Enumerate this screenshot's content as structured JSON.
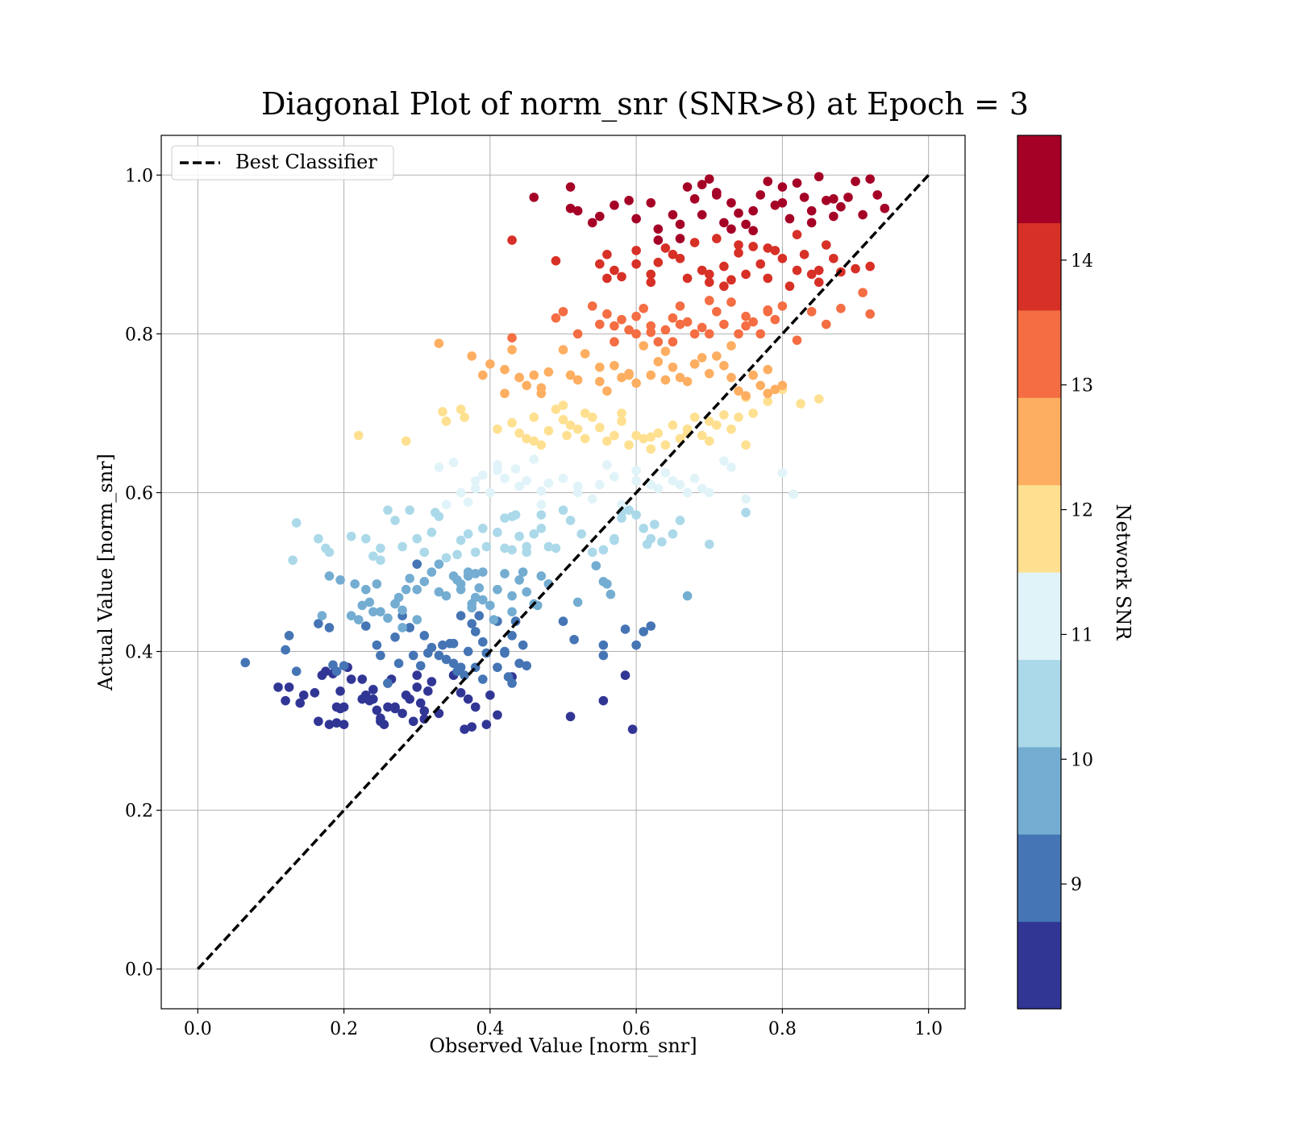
{
  "chart_data": {
    "type": "scatter",
    "title": "Diagonal Plot of norm_snr (SNR>8) at Epoch = 3",
    "xlabel": "Observed Value [norm_snr]",
    "ylabel": "Actual Value [norm_snr]",
    "xlim": [
      -0.05,
      1.05
    ],
    "ylim": [
      -0.05,
      1.05
    ],
    "xticks": [
      "0.0",
      "0.2",
      "0.4",
      "0.6",
      "0.8",
      "1.0"
    ],
    "yticks": [
      "0.0",
      "0.2",
      "0.4",
      "0.6",
      "0.8",
      "1.0"
    ],
    "grid": true,
    "legend": {
      "position": "top-left",
      "entries": [
        "Best Classifier"
      ]
    },
    "reference_line": {
      "name": "Best Classifier",
      "x": [
        0,
        1
      ],
      "y": [
        0,
        1
      ],
      "style": "dashed",
      "color": "#000000"
    },
    "colorbar": {
      "label": "Network SNR",
      "range": [
        8,
        15
      ],
      "ticks": [
        "9",
        "10",
        "11",
        "12",
        "13",
        "14"
      ],
      "tick_values": [
        9,
        10,
        11,
        12,
        13,
        14
      ],
      "colors": [
        "#313695",
        "#4575b4",
        "#74add1",
        "#abd9e9",
        "#e0f3f8",
        "#fee090",
        "#fdae61",
        "#f46d43",
        "#d73027",
        "#a50026"
      ]
    },
    "points_by_band": [
      {
        "color": "#313695",
        "x": [
          0.11,
          0.12,
          0.125,
          0.145,
          0.165,
          0.17,
          0.18,
          0.19,
          0.19,
          0.195,
          0.2,
          0.2,
          0.205,
          0.175,
          0.185,
          0.195,
          0.225,
          0.23,
          0.235,
          0.24,
          0.245,
          0.25,
          0.255,
          0.26,
          0.265,
          0.27,
          0.28,
          0.285,
          0.29,
          0.295,
          0.3,
          0.305,
          0.31,
          0.315,
          0.32,
          0.33,
          0.36,
          0.365,
          0.37,
          0.375,
          0.38,
          0.395,
          0.4,
          0.41,
          0.43,
          0.51,
          0.555,
          0.585,
          0.595,
          0.16,
          0.14,
          0.21,
          0.25,
          0.26,
          0.3,
          0.31,
          0.35,
          0.27,
          0.24,
          0.225
        ],
        "y": [
          0.355,
          0.338,
          0.355,
          0.345,
          0.312,
          0.37,
          0.308,
          0.31,
          0.33,
          0.35,
          0.308,
          0.33,
          0.38,
          0.375,
          0.372,
          0.328,
          0.365,
          0.345,
          0.338,
          0.352,
          0.326,
          0.316,
          0.308,
          0.33,
          0.365,
          0.33,
          0.322,
          0.345,
          0.34,
          0.312,
          0.37,
          0.335,
          0.325,
          0.35,
          0.362,
          0.322,
          0.348,
          0.302,
          0.34,
          0.305,
          0.33,
          0.308,
          0.345,
          0.32,
          0.368,
          0.318,
          0.338,
          0.37,
          0.302,
          0.348,
          0.335,
          0.365,
          0.312,
          0.36,
          0.355,
          0.315,
          0.37,
          0.328,
          0.34,
          0.34
        ]
      },
      {
        "color": "#4575b4",
        "x": [
          0.065,
          0.12,
          0.125,
          0.135,
          0.165,
          0.18,
          0.185,
          0.19,
          0.2,
          0.23,
          0.245,
          0.25,
          0.26,
          0.27,
          0.275,
          0.28,
          0.29,
          0.295,
          0.3,
          0.305,
          0.31,
          0.315,
          0.32,
          0.33,
          0.335,
          0.34,
          0.345,
          0.35,
          0.355,
          0.36,
          0.365,
          0.37,
          0.375,
          0.38,
          0.385,
          0.39,
          0.395,
          0.41,
          0.42,
          0.425,
          0.43,
          0.435,
          0.44,
          0.445,
          0.45,
          0.5,
          0.515,
          0.555,
          0.585,
          0.6,
          0.61,
          0.62,
          0.555,
          0.41,
          0.43,
          0.39,
          0.36,
          0.35,
          0.38,
          0.42
        ],
        "y": [
          0.386,
          0.402,
          0.42,
          0.375,
          0.435,
          0.43,
          0.383,
          0.375,
          0.382,
          0.432,
          0.408,
          0.395,
          0.36,
          0.418,
          0.385,
          0.445,
          0.43,
          0.395,
          0.51,
          0.382,
          0.42,
          0.398,
          0.405,
          0.395,
          0.408,
          0.39,
          0.41,
          0.385,
          0.375,
          0.38,
          0.37,
          0.4,
          0.435,
          0.38,
          0.445,
          0.412,
          0.398,
          0.438,
          0.4,
          0.368,
          0.42,
          0.438,
          0.385,
          0.408,
          0.382,
          0.438,
          0.415,
          0.408,
          0.428,
          0.408,
          0.425,
          0.432,
          0.395,
          0.38,
          0.36,
          0.365,
          0.445,
          0.41,
          0.425,
          0.398
        ]
      },
      {
        "color": "#74add1",
        "x": [
          0.17,
          0.18,
          0.195,
          0.21,
          0.215,
          0.22,
          0.225,
          0.23,
          0.235,
          0.24,
          0.245,
          0.25,
          0.26,
          0.27,
          0.275,
          0.28,
          0.285,
          0.29,
          0.3,
          0.31,
          0.32,
          0.33,
          0.34,
          0.35,
          0.355,
          0.36,
          0.37,
          0.375,
          0.38,
          0.385,
          0.39,
          0.4,
          0.405,
          0.41,
          0.42,
          0.43,
          0.44,
          0.445,
          0.45,
          0.46,
          0.465,
          0.47,
          0.48,
          0.52,
          0.545,
          0.555,
          0.56,
          0.565,
          0.67,
          0.375,
          0.38,
          0.37,
          0.36,
          0.39,
          0.43,
          0.3,
          0.33,
          0.28,
          0.27
        ],
        "y": [
          0.445,
          0.495,
          0.49,
          0.445,
          0.485,
          0.44,
          0.458,
          0.478,
          0.462,
          0.45,
          0.485,
          0.45,
          0.442,
          0.46,
          0.468,
          0.452,
          0.478,
          0.492,
          0.478,
          0.488,
          0.5,
          0.475,
          0.47,
          0.495,
          0.49,
          0.485,
          0.5,
          0.46,
          0.498,
          0.48,
          0.5,
          0.458,
          0.44,
          0.478,
          0.498,
          0.45,
          0.49,
          0.5,
          0.475,
          0.46,
          0.458,
          0.495,
          0.485,
          0.462,
          0.508,
          0.488,
          0.485,
          0.472,
          0.47,
          0.455,
          0.468,
          0.495,
          0.478,
          0.465,
          0.47,
          0.44,
          0.51,
          0.43,
          0.46
        ]
      },
      {
        "color": "#abd9e9",
        "x": [
          0.135,
          0.165,
          0.175,
          0.21,
          0.23,
          0.24,
          0.25,
          0.26,
          0.27,
          0.28,
          0.29,
          0.3,
          0.31,
          0.32,
          0.33,
          0.34,
          0.355,
          0.37,
          0.38,
          0.39,
          0.395,
          0.41,
          0.42,
          0.43,
          0.435,
          0.44,
          0.45,
          0.46,
          0.47,
          0.48,
          0.49,
          0.5,
          0.51,
          0.525,
          0.54,
          0.555,
          0.57,
          0.58,
          0.59,
          0.6,
          0.61,
          0.62,
          0.625,
          0.635,
          0.65,
          0.66,
          0.7,
          0.75,
          0.36,
          0.42,
          0.45,
          0.325,
          0.25,
          0.18,
          0.13,
          0.43,
          0.47,
          0.57,
          0.58,
          0.615
        ],
        "y": [
          0.562,
          0.542,
          0.53,
          0.545,
          0.542,
          0.52,
          0.53,
          0.578,
          0.565,
          0.532,
          0.578,
          0.542,
          0.525,
          0.55,
          0.57,
          0.518,
          0.522,
          0.548,
          0.525,
          0.555,
          0.532,
          0.55,
          0.568,
          0.528,
          0.572,
          0.545,
          0.532,
          0.548,
          0.572,
          0.532,
          0.53,
          0.578,
          0.565,
          0.548,
          0.525,
          0.528,
          0.542,
          0.568,
          0.578,
          0.572,
          0.555,
          0.542,
          0.56,
          0.538,
          0.548,
          0.565,
          0.535,
          0.575,
          0.54,
          0.53,
          0.525,
          0.575,
          0.515,
          0.525,
          0.515,
          0.57,
          0.555,
          0.54,
          0.575,
          0.535
        ]
      },
      {
        "color": "#e0f3f8",
        "x": [
          0.33,
          0.34,
          0.35,
          0.36,
          0.37,
          0.38,
          0.39,
          0.4,
          0.41,
          0.42,
          0.435,
          0.45,
          0.46,
          0.47,
          0.48,
          0.5,
          0.52,
          0.54,
          0.56,
          0.58,
          0.6,
          0.62,
          0.64,
          0.66,
          0.68,
          0.7,
          0.72,
          0.75,
          0.8,
          0.815,
          0.38,
          0.41,
          0.44,
          0.47,
          0.57,
          0.6,
          0.63,
          0.69,
          0.73,
          0.52,
          0.55,
          0.65,
          0.67
        ],
        "y": [
          0.632,
          0.585,
          0.638,
          0.6,
          0.588,
          0.605,
          0.622,
          0.6,
          0.635,
          0.618,
          0.63,
          0.615,
          0.642,
          0.585,
          0.612,
          0.618,
          0.6,
          0.592,
          0.635,
          0.585,
          0.628,
          0.61,
          0.625,
          0.61,
          0.618,
          0.6,
          0.64,
          0.592,
          0.625,
          0.598,
          0.615,
          0.628,
          0.608,
          0.602,
          0.62,
          0.615,
          0.605,
          0.605,
          0.632,
          0.608,
          0.61,
          0.615,
          0.6
        ]
      },
      {
        "color": "#fee090",
        "x": [
          0.22,
          0.285,
          0.335,
          0.34,
          0.36,
          0.365,
          0.41,
          0.43,
          0.44,
          0.45,
          0.46,
          0.47,
          0.48,
          0.49,
          0.5,
          0.505,
          0.51,
          0.52,
          0.53,
          0.54,
          0.55,
          0.56,
          0.57,
          0.58,
          0.59,
          0.6,
          0.61,
          0.62,
          0.63,
          0.64,
          0.65,
          0.66,
          0.67,
          0.68,
          0.69,
          0.7,
          0.71,
          0.72,
          0.73,
          0.74,
          0.75,
          0.76,
          0.78,
          0.8,
          0.825,
          0.85,
          0.46,
          0.5,
          0.53,
          0.58,
          0.62,
          0.67,
          0.7,
          0.75
        ],
        "y": [
          0.672,
          0.665,
          0.702,
          0.69,
          0.705,
          0.695,
          0.68,
          0.688,
          0.675,
          0.668,
          0.695,
          0.66,
          0.678,
          0.705,
          0.692,
          0.672,
          0.685,
          0.68,
          0.668,
          0.695,
          0.682,
          0.665,
          0.672,
          0.7,
          0.66,
          0.672,
          0.668,
          0.655,
          0.675,
          0.66,
          0.685,
          0.668,
          0.675,
          0.695,
          0.672,
          0.665,
          0.685,
          0.698,
          0.68,
          0.695,
          0.72,
          0.7,
          0.715,
          0.73,
          0.712,
          0.718,
          0.665,
          0.71,
          0.7,
          0.69,
          0.67,
          0.68,
          0.69,
          0.66
        ]
      },
      {
        "color": "#fdae61",
        "x": [
          0.33,
          0.375,
          0.39,
          0.4,
          0.42,
          0.43,
          0.44,
          0.45,
          0.46,
          0.47,
          0.48,
          0.5,
          0.52,
          0.53,
          0.55,
          0.56,
          0.57,
          0.58,
          0.59,
          0.6,
          0.61,
          0.62,
          0.63,
          0.64,
          0.65,
          0.66,
          0.67,
          0.68,
          0.69,
          0.7,
          0.71,
          0.72,
          0.73,
          0.74,
          0.75,
          0.76,
          0.77,
          0.78,
          0.79,
          0.8,
          0.42,
          0.44,
          0.47,
          0.51,
          0.55,
          0.59,
          0.64,
          0.68,
          0.73,
          0.78
        ],
        "y": [
          0.788,
          0.772,
          0.748,
          0.762,
          0.755,
          0.78,
          0.745,
          0.735,
          0.748,
          0.725,
          0.752,
          0.78,
          0.742,
          0.775,
          0.74,
          0.728,
          0.76,
          0.745,
          0.748,
          0.738,
          0.785,
          0.748,
          0.765,
          0.742,
          0.758,
          0.745,
          0.74,
          0.762,
          0.77,
          0.75,
          0.772,
          0.76,
          0.785,
          0.728,
          0.722,
          0.748,
          0.735,
          0.725,
          0.73,
          0.735,
          0.725,
          0.745,
          0.732,
          0.748,
          0.758,
          0.75,
          0.778,
          0.762,
          0.745,
          0.755
        ]
      },
      {
        "color": "#f46d43",
        "x": [
          0.43,
          0.49,
          0.5,
          0.52,
          0.54,
          0.55,
          0.56,
          0.57,
          0.58,
          0.59,
          0.6,
          0.61,
          0.62,
          0.63,
          0.64,
          0.65,
          0.66,
          0.67,
          0.68,
          0.69,
          0.7,
          0.71,
          0.72,
          0.73,
          0.74,
          0.75,
          0.76,
          0.77,
          0.78,
          0.79,
          0.8,
          0.82,
          0.84,
          0.86,
          0.88,
          0.91,
          0.92,
          0.57,
          0.6,
          0.65,
          0.7,
          0.75,
          0.78,
          0.62,
          0.66
        ],
        "y": [
          0.795,
          0.82,
          0.828,
          0.8,
          0.835,
          0.812,
          0.825,
          0.79,
          0.818,
          0.805,
          0.8,
          0.832,
          0.81,
          0.79,
          0.805,
          0.82,
          0.835,
          0.815,
          0.8,
          0.808,
          0.8,
          0.828,
          0.812,
          0.84,
          0.8,
          0.822,
          0.815,
          0.8,
          0.828,
          0.818,
          0.835,
          0.792,
          0.828,
          0.812,
          0.832,
          0.852,
          0.825,
          0.81,
          0.822,
          0.79,
          0.842,
          0.81,
          0.83,
          0.802,
          0.812
        ]
      },
      {
        "color": "#d73027",
        "x": [
          0.43,
          0.49,
          0.55,
          0.56,
          0.57,
          0.58,
          0.6,
          0.62,
          0.63,
          0.64,
          0.66,
          0.67,
          0.68,
          0.69,
          0.7,
          0.71,
          0.72,
          0.73,
          0.74,
          0.75,
          0.76,
          0.77,
          0.78,
          0.79,
          0.8,
          0.81,
          0.82,
          0.83,
          0.84,
          0.85,
          0.86,
          0.87,
          0.88,
          0.9,
          0.92,
          0.56,
          0.6,
          0.65,
          0.7,
          0.74,
          0.78,
          0.82,
          0.85,
          0.72,
          0.62
        ],
        "y": [
          0.918,
          0.892,
          0.888,
          0.9,
          0.88,
          0.872,
          0.905,
          0.875,
          0.89,
          0.908,
          0.895,
          0.87,
          0.915,
          0.88,
          0.865,
          0.92,
          0.885,
          0.868,
          0.902,
          0.875,
          0.91,
          0.888,
          0.87,
          0.905,
          0.895,
          0.86,
          0.88,
          0.9,
          0.875,
          0.865,
          0.912,
          0.895,
          0.878,
          0.882,
          0.885,
          0.87,
          0.888,
          0.9,
          0.875,
          0.912,
          0.908,
          0.925,
          0.88,
          0.86,
          0.865
        ]
      },
      {
        "color": "#a50026",
        "x": [
          0.46,
          0.51,
          0.52,
          0.51,
          0.54,
          0.55,
          0.57,
          0.59,
          0.6,
          0.62,
          0.63,
          0.65,
          0.66,
          0.67,
          0.68,
          0.69,
          0.7,
          0.71,
          0.72,
          0.73,
          0.74,
          0.75,
          0.76,
          0.77,
          0.78,
          0.79,
          0.8,
          0.81,
          0.82,
          0.83,
          0.84,
          0.85,
          0.86,
          0.87,
          0.88,
          0.89,
          0.9,
          0.91,
          0.92,
          0.93,
          0.94,
          0.69,
          0.71,
          0.76,
          0.8,
          0.84,
          0.87,
          0.73,
          0.66,
          0.63
        ],
        "y": [
          0.972,
          0.985,
          0.955,
          0.958,
          0.94,
          0.948,
          0.962,
          0.968,
          0.945,
          0.965,
          0.932,
          0.95,
          0.938,
          0.985,
          0.97,
          0.95,
          0.995,
          0.975,
          0.94,
          0.965,
          0.952,
          0.938,
          0.955,
          0.975,
          0.992,
          0.962,
          0.985,
          0.945,
          0.99,
          0.972,
          0.955,
          0.998,
          0.968,
          0.948,
          0.96,
          0.972,
          0.992,
          0.95,
          0.995,
          0.975,
          0.958,
          0.988,
          0.978,
          0.93,
          0.965,
          0.94,
          0.97,
          0.932,
          0.92,
          0.918
        ]
      }
    ]
  }
}
